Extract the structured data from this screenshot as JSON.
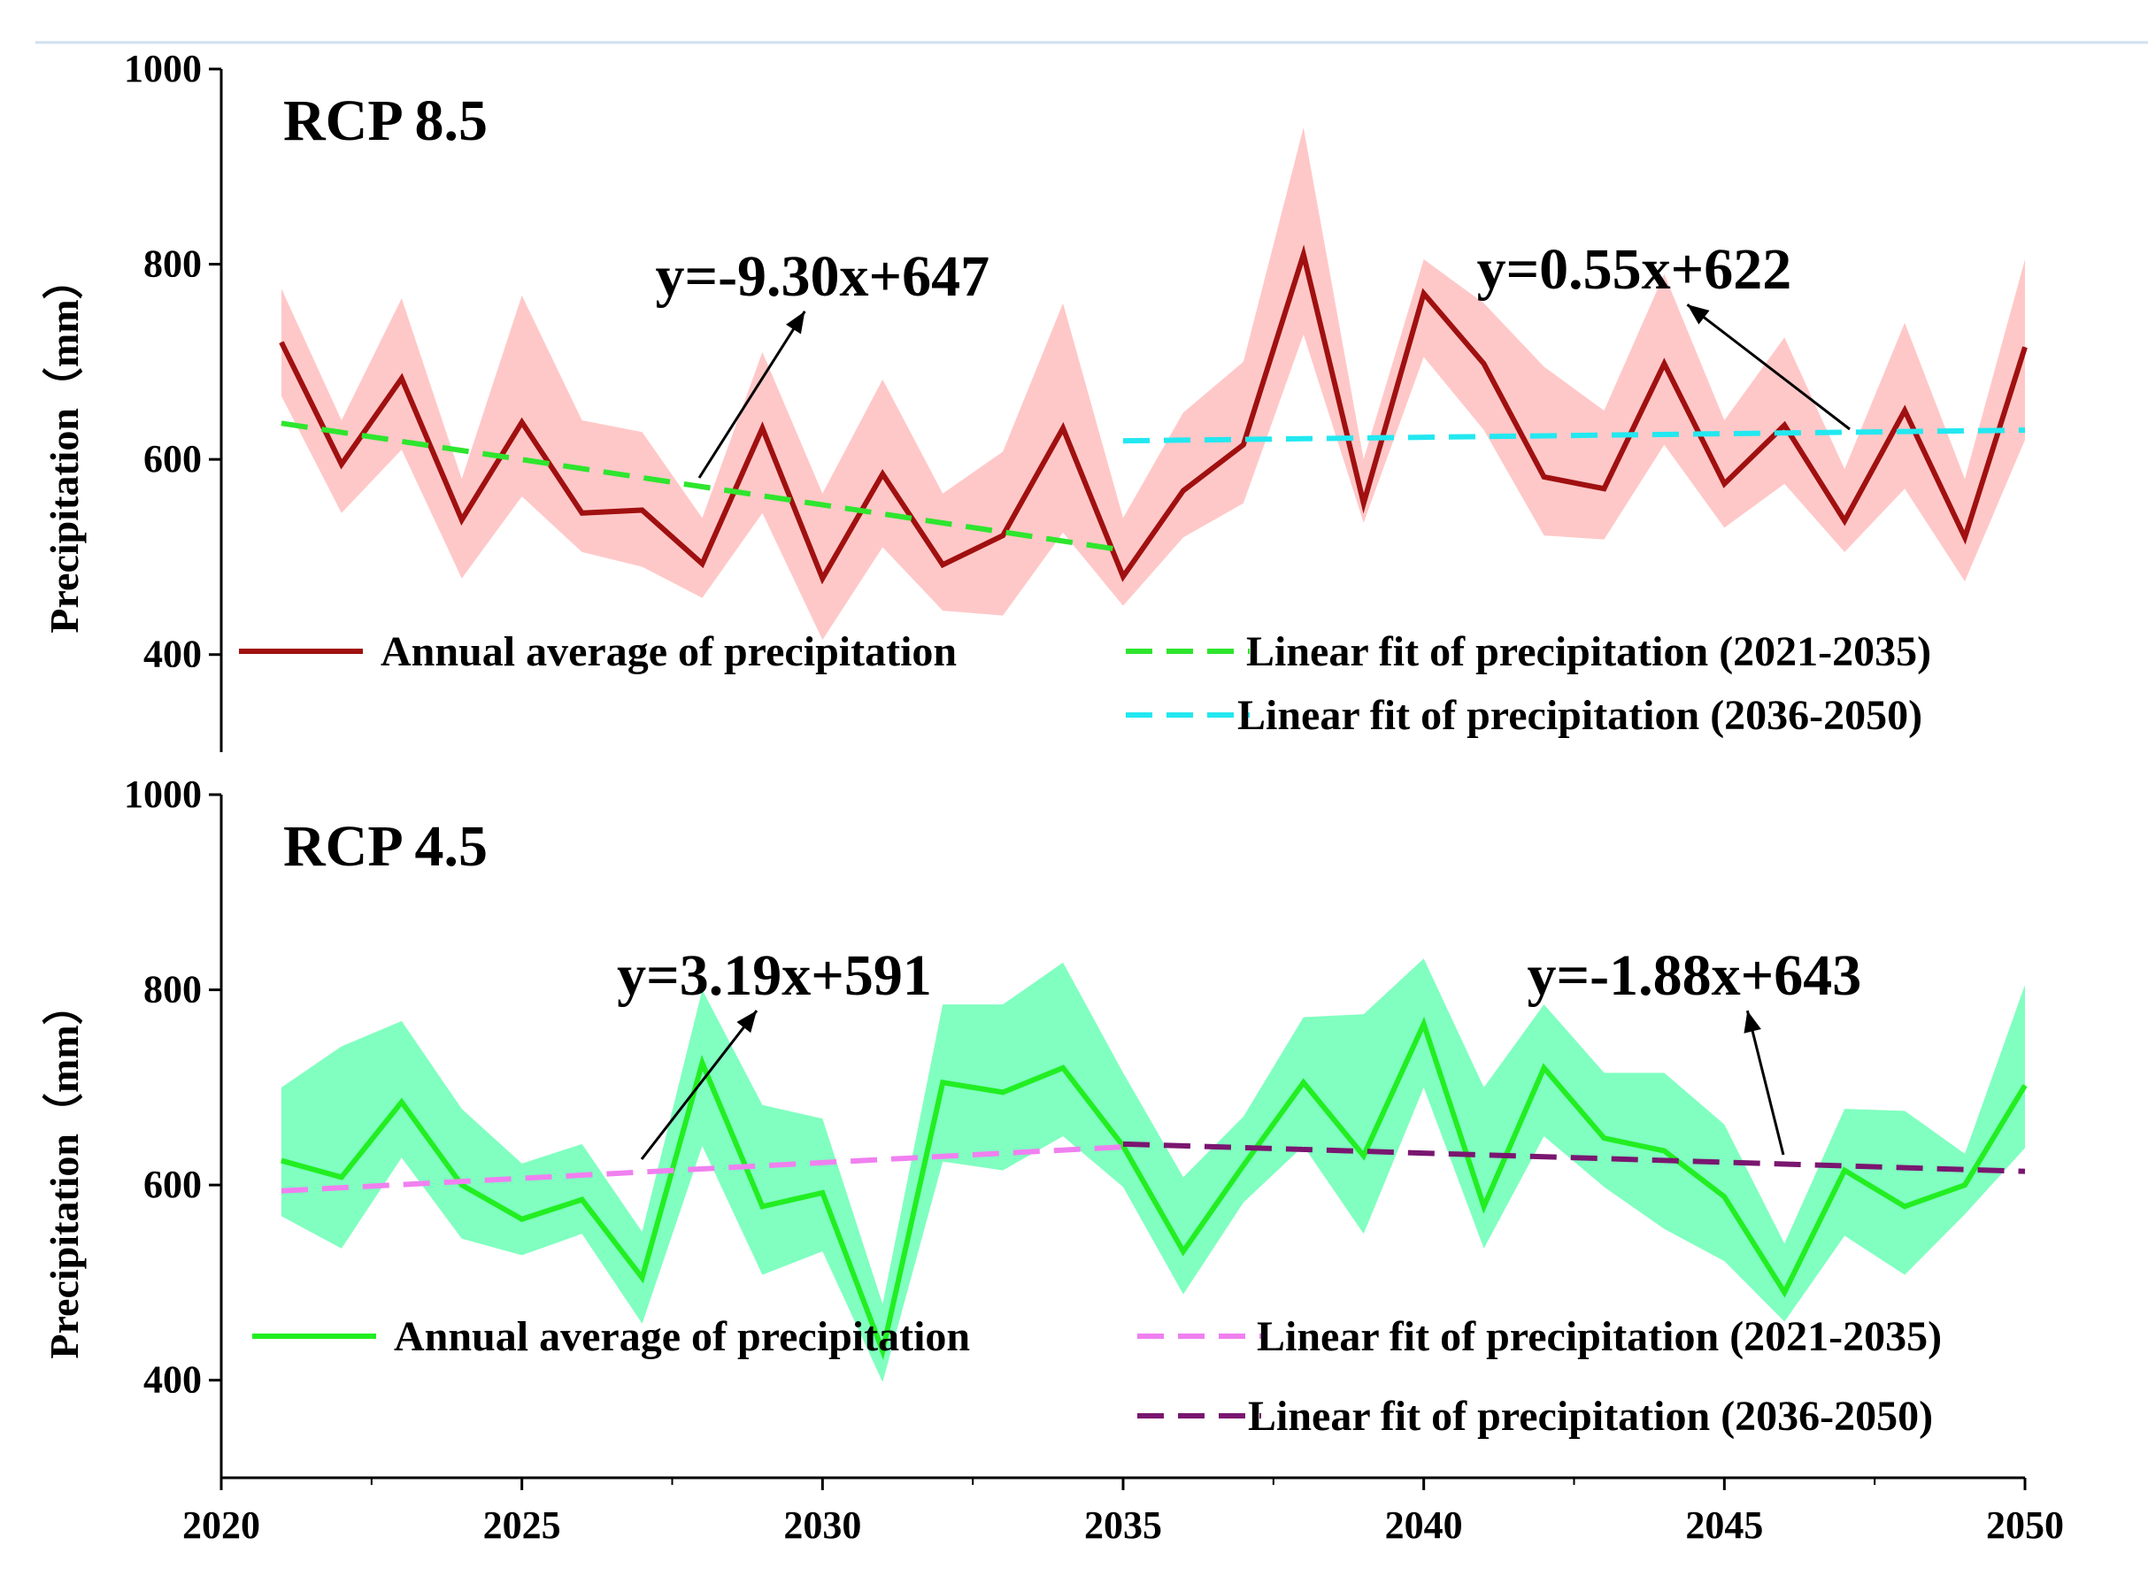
{
  "chart_data": [
    {
      "type": "line",
      "title": "RCP 8.5",
      "xlabel": "",
      "ylabel": "Precipitation（mm）",
      "xlim": [
        2020,
        2050
      ],
      "ylim": [
        300,
        1000
      ],
      "yticks": [
        "400",
        "600",
        "800",
        "1000"
      ],
      "x": [
        2021,
        2022,
        2023,
        2024,
        2025,
        2026,
        2027,
        2028,
        2029,
        2030,
        2031,
        2032,
        2033,
        2034,
        2035,
        2036,
        2037,
        2038,
        2039,
        2040,
        2041,
        2042,
        2043,
        2044,
        2045,
        2046,
        2047,
        2048,
        2049,
        2050
      ],
      "series": [
        {
          "name": "Annual average of precipitation",
          "color": "#a01010",
          "band_color": "#ffc8c8",
          "values": [
            720,
            595,
            683,
            538,
            638,
            545,
            548,
            493,
            632,
            478,
            585,
            492,
            522,
            632,
            480,
            568,
            615,
            810,
            555,
            770,
            698,
            582,
            570,
            698,
            575,
            635,
            537,
            650,
            520,
            715
          ],
          "upper": [
            775,
            640,
            765,
            580,
            768,
            640,
            628,
            540,
            710,
            565,
            682,
            565,
            608,
            760,
            540,
            648,
            700,
            940,
            600,
            805,
            760,
            695,
            650,
            790,
            640,
            725,
            590,
            740,
            580,
            805
          ],
          "lower": [
            665,
            545,
            610,
            478,
            562,
            505,
            490,
            458,
            545,
            415,
            510,
            445,
            440,
            525,
            450,
            520,
            555,
            728,
            535,
            705,
            630,
            522,
            518,
            615,
            530,
            575,
            505,
            570,
            475,
            620
          ]
        },
        {
          "name": "Linear fit of precipitation (2021-2035)",
          "color": "#2ee52e",
          "x": [
            2021,
            2035
          ],
          "values": [
            637,
            507
          ]
        },
        {
          "name": "Linear fit of precipitation (2036-2050)",
          "color": "#22e8f0",
          "x": [
            2035,
            2050
          ],
          "values": [
            619,
            630
          ]
        }
      ],
      "annotations": [
        {
          "text": "y=-9.30x+647",
          "x": 2030,
          "y": 768
        },
        {
          "text": "y=0.55x+622",
          "x": 2043.5,
          "y": 775
        }
      ]
    },
    {
      "type": "line",
      "title": "RCP 4.5",
      "xlabel": "",
      "ylabel": "Precipitation（mm）",
      "xlim": [
        2020,
        2050
      ],
      "ylim": [
        300,
        1000
      ],
      "xticks": [
        "2020",
        "2025",
        "2030",
        "2035",
        "2040",
        "2045",
        "2050"
      ],
      "yticks": [
        "400",
        "600",
        "800",
        "1000"
      ],
      "x": [
        2021,
        2022,
        2023,
        2024,
        2025,
        2026,
        2027,
        2028,
        2029,
        2030,
        2031,
        2032,
        2033,
        2034,
        2035,
        2036,
        2037,
        2038,
        2039,
        2040,
        2041,
        2042,
        2043,
        2044,
        2045,
        2046,
        2047,
        2048,
        2049,
        2050
      ],
      "series": [
        {
          "name": "Annual average of precipitation",
          "color": "#22ee22",
          "band_color": "#80ffc0",
          "values": [
            625,
            608,
            685,
            600,
            565,
            585,
            505,
            725,
            578,
            592,
            430,
            705,
            695,
            720,
            640,
            532,
            620,
            705,
            630,
            765,
            578,
            720,
            648,
            635,
            588,
            490,
            615,
            578,
            600,
            702
          ],
          "upper": [
            700,
            742,
            768,
            678,
            622,
            642,
            552,
            800,
            682,
            668,
            478,
            785,
            785,
            828,
            715,
            608,
            670,
            772,
            775,
            832,
            700,
            785,
            715,
            715,
            662,
            540,
            678,
            676,
            632,
            805
          ],
          "lower": [
            568,
            535,
            628,
            545,
            528,
            550,
            458,
            640,
            508,
            532,
            398,
            624,
            615,
            650,
            598,
            488,
            582,
            640,
            550,
            700,
            535,
            650,
            598,
            555,
            522,
            460,
            548,
            508,
            570,
            638
          ]
        },
        {
          "name": "Linear fit of precipitation (2021-2035)",
          "color": "#f080f0",
          "x": [
            2021,
            2035
          ],
          "values": [
            594,
            639
          ]
        },
        {
          "name": "Linear fit of precipitation (2036-2050)",
          "color": "#7a1670",
          "x": [
            2035,
            2050
          ],
          "values": [
            642,
            614
          ]
        }
      ],
      "annotations": [
        {
          "text": "y=3.19x+591",
          "x": 2029.2,
          "y": 795
        },
        {
          "text": "y=-1.88x+643",
          "x": 2044.5,
          "y": 795
        }
      ]
    }
  ]
}
